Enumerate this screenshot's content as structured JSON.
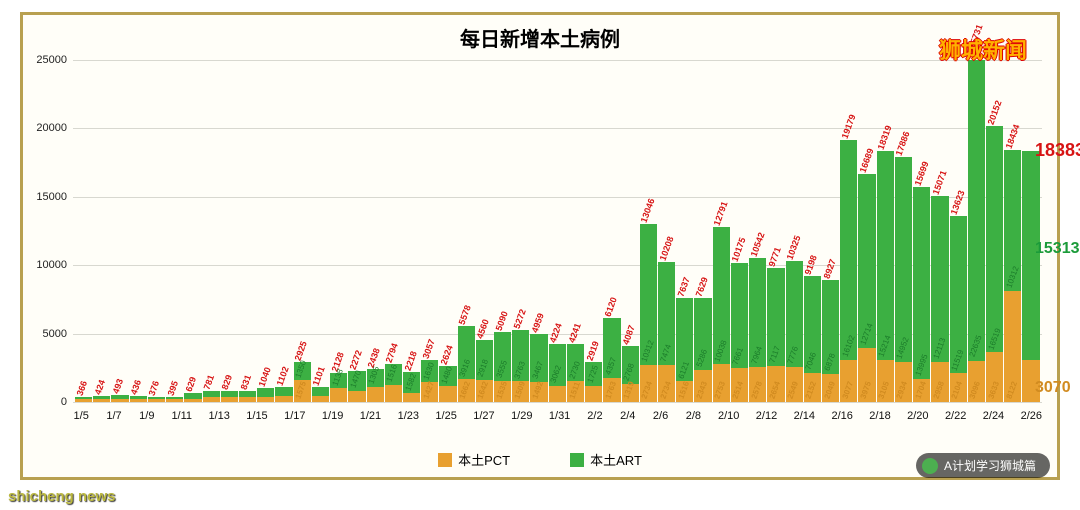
{
  "chart": {
    "type": "stacked-bar",
    "title": "每日新增本土病例",
    "title_fontsize": 20,
    "background_color": "#fffef8",
    "border_color": "#b8a050",
    "grid_color": "#d8d8d0",
    "ylim": [
      0,
      25000
    ],
    "ytick_step": 5000,
    "yticks": [
      "0",
      "5000",
      "10000",
      "15000",
      "20000",
      "25000"
    ],
    "series": [
      {
        "name": "本土PCT",
        "color": "#e8a030"
      },
      {
        "name": "本土ART",
        "color": "#3cb043"
      }
    ],
    "total_label_color": "#d71414",
    "art_label_color": "#1b7b2a",
    "pct_label_color": "#d18b20",
    "final_total_color": "#d71414",
    "final_art_color": "#1b9b3a",
    "final_pct_color": "#d18b20",
    "categories": [
      "1/5",
      "1/6",
      "1/7",
      "1/8",
      "1/9",
      "1/10",
      "1/11",
      "1/12",
      "1/13",
      "1/14",
      "1/15",
      "1/16",
      "1/17",
      "1/18",
      "1/19",
      "1/20",
      "1/21",
      "1/22",
      "1/23",
      "1/24",
      "1/25",
      "1/26",
      "1/27",
      "1/28",
      "1/29",
      "1/30",
      "1/31",
      "2/1",
      "2/2",
      "2/3",
      "2/4",
      "2/5",
      "2/6",
      "2/7",
      "2/8",
      "2/9",
      "2/10",
      "2/11",
      "2/12",
      "2/13",
      "2/14",
      "2/15",
      "2/16",
      "2/17",
      "2/18",
      "2/19",
      "2/20",
      "2/21",
      "2/22",
      "2/23",
      "2/24",
      "2/25",
      "2/26"
    ],
    "x_labels_shown": [
      "1/5",
      "1/7",
      "1/9",
      "1/11",
      "1/13",
      "1/15",
      "1/17",
      "1/19",
      "1/21",
      "1/23",
      "1/25",
      "1/27",
      "1/29",
      "1/31",
      "2/2",
      "2/4",
      "2/6",
      "2/8",
      "2/10",
      "2/12",
      "2/14",
      "2/16",
      "2/18",
      "2/20",
      "2/22",
      "2/24",
      "2/26"
    ],
    "totals": [
      366,
      424,
      493,
      436,
      376,
      395,
      629,
      781,
      829,
      831,
      1040,
      1102,
      2925,
      1101,
      2128,
      2272,
      2438,
      2794,
      2218,
      3057,
      2624,
      5578,
      4560,
      5090,
      5272,
      4959,
      4224,
      4241,
      2919,
      6120,
      4087,
      13046,
      10208,
      7637,
      7629,
      12791,
      10175,
      10542,
      9771,
      10325,
      9198,
      8927,
      19179,
      16689,
      18319,
      17886,
      15699,
      15071,
      13623,
      25731,
      20152,
      18434,
      18383
    ],
    "art": [
      172,
      200,
      250,
      200,
      150,
      170,
      383,
      450,
      480,
      460,
      640,
      680,
      1350,
      640,
      1138,
      1470,
      1305,
      1516,
      1582,
      1630,
      1480,
      3916,
      2918,
      3555,
      3763,
      3467,
      3062,
      2730,
      1725,
      4357,
      2768,
      10312,
      7474,
      6121,
      5286,
      10038,
      7661,
      7964,
      7117,
      7776,
      7046,
      6878,
      16102,
      12714,
      15214,
      14952,
      13995,
      12113,
      11519,
      22635,
      16519,
      10312,
      15313
    ],
    "pct": [
      194,
      224,
      243,
      236,
      226,
      225,
      246,
      331,
      349,
      371,
      400,
      422,
      1575,
      461,
      990,
      802,
      1133,
      1278,
      636,
      1427,
      1144,
      1662,
      1642,
      1535,
      1509,
      1492,
      1162,
      1511,
      1194,
      1763,
      1319,
      2734,
      2734,
      1516,
      2343,
      2753,
      2514,
      2578,
      2654,
      2549,
      2152,
      2049,
      3077,
      3975,
      3105,
      2934,
      1704,
      2958,
      2104,
      3096,
      3633,
      8122,
      3070
    ],
    "last_total": "18383",
    "last_art": "15313",
    "last_pct": "3070"
  },
  "watermark": "狮城新闻",
  "footer_watermark": "shicheng news",
  "wechat_badge": "A计划学习狮城篇"
}
